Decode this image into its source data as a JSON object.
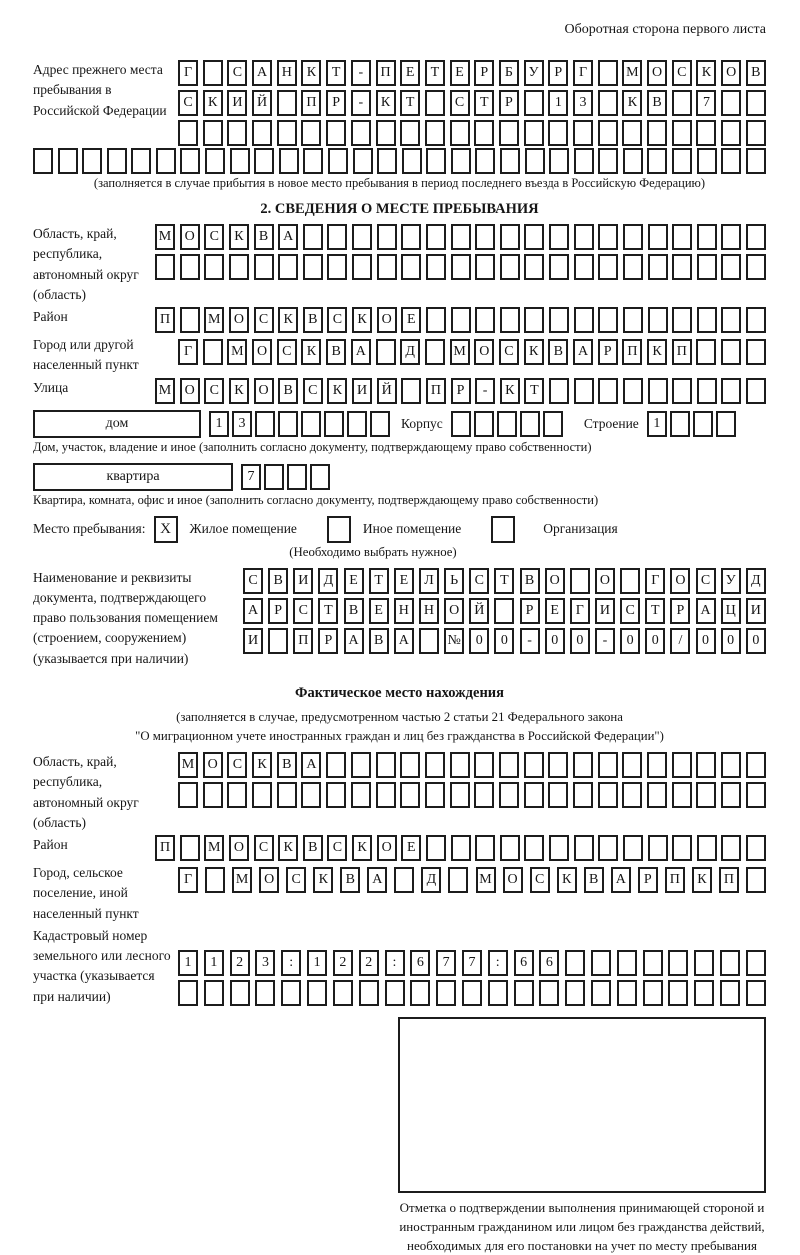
{
  "header_note": "Оборотная сторона первого листа",
  "prev_address": {
    "label": "Адрес прежнего места пребывания в Российской Федерации",
    "rows": [
      {
        "len": 24,
        "chars": "Г САНКТ-ПЕТЕРБУРГ МОСКОВ"
      },
      {
        "len": 24,
        "chars": "СКИЙ ПР-КТ СТР 13 КВ 7"
      },
      {
        "len": 24,
        "chars": ""
      },
      {
        "len": 30,
        "chars": ""
      }
    ],
    "note": "(заполняется в случае прибытия в новое место пребывания в период последнего въезда в Российскую Федерацию)"
  },
  "section2": {
    "title": "2. СВЕДЕНИЯ О МЕСТЕ ПРЕБЫВАНИЯ",
    "oblast": {
      "label": "Область, край, республика, автономный округ (область)",
      "rows": [
        {
          "len": 25,
          "chars": "МОСКВА"
        },
        {
          "len": 25,
          "chars": ""
        }
      ]
    },
    "raion": {
      "label": "Район",
      "row": {
        "len": 25,
        "chars": "П МОСКВСКОЕ"
      }
    },
    "gorod": {
      "label": "Город или другой населенный пункт",
      "row": {
        "len": 24,
        "chars": "Г МОСКВА Д МОСКВАРПКП"
      }
    },
    "ulitsa": {
      "label": "Улица",
      "row": {
        "len": 25,
        "chars": "МОСКОВСКИЙ ПР-КТ"
      }
    },
    "dom": {
      "box_label": "дом",
      "cells": {
        "len": 8,
        "chars": "13"
      },
      "korpus_label": "Корпус",
      "korpus_cells": {
        "len": 5,
        "chars": ""
      },
      "stroenie_label": "Строение",
      "stroenie_cells": {
        "len": 4,
        "chars": "1"
      },
      "note": "Дом, участок, владение и иное (заполнить согласно документу, подтверждающему право собственности)"
    },
    "kvartira": {
      "box_label": "квартира",
      "cells": {
        "len": 4,
        "chars": "7"
      },
      "note": "Квартира, комната, офис и иное (заполнить согласно документу, подтверждающему право собственности)"
    },
    "mesto": {
      "label": "Место пребывания:",
      "options": [
        {
          "label": "Жилое помещение",
          "checked": "X"
        },
        {
          "label": "Иное помещение",
          "checked": ""
        },
        {
          "label": "Организация",
          "checked": ""
        }
      ],
      "note": "(Необходимо выбрать нужное)"
    },
    "doc": {
      "label": "Наименование и реквизиты документа, подтверждающего право пользования помещением (строением, сооружением) (указывается при наличии)",
      "rows": [
        {
          "len": 21,
          "chars": "СВИДЕТЕЛЬСТВО О ГОСУД"
        },
        {
          "len": 21,
          "chars": "АРСТВЕННОЙ РЕГИСТРАЦИ"
        },
        {
          "len": 21,
          "chars": "И ПРАВА №00-00-00/000"
        }
      ]
    }
  },
  "fact": {
    "title": "Фактическое место нахождения",
    "note1": "(заполняется в случае, предусмотренном частью 2 статьи 21 Федерального закона",
    "note2": "\"О миграционном учете иностранных граждан и лиц без гражданства в Российской Федерации\")",
    "oblast": {
      "label": "Область, край, республика, автономный округ (область)",
      "rows": [
        {
          "len": 24,
          "chars": "МОСКВА"
        },
        {
          "len": 24,
          "chars": ""
        }
      ]
    },
    "raion": {
      "label": "Район",
      "row": {
        "len": 25,
        "chars": "П МОСКВСКОЕ"
      }
    },
    "gorod": {
      "label": "Город, сельское поселение, иной населенный пункт",
      "row": {
        "len": 22,
        "chars": "Г МОСКВА Д МОСКВАРПКП"
      }
    },
    "kadastr": {
      "label": "Кадастровый номер земельного или лесного участка (указывается при наличии)",
      "rows": [
        {
          "len": 23,
          "chars": "1123:122:677:66"
        },
        {
          "len": 23,
          "chars": ""
        }
      ]
    },
    "stamp_note": "Отметка о подтверждении выполнения принимающей стороной и иностранным гражданином или лицом без гражданства действий, необходимых для его постановки на учет по месту пребывания"
  }
}
